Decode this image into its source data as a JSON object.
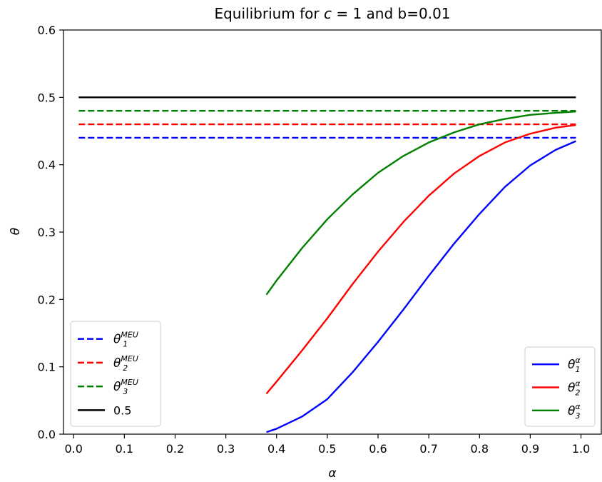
{
  "chart_data": {
    "type": "line",
    "title": "Equilibrium for c = 1 and b=0.01",
    "title_parts": [
      "Equilibrium for ",
      "c",
      " = 1 and b=0.01"
    ],
    "xlabel": "α",
    "ylabel": "θ",
    "xlim": [
      -0.02,
      1.04
    ],
    "ylim": [
      0.0,
      0.6
    ],
    "xticks": [
      0.0,
      0.1,
      0.2,
      0.3,
      0.4,
      0.5,
      0.6,
      0.7,
      0.8,
      0.9,
      1.0
    ],
    "xtick_labels": [
      "0.0",
      "0.1",
      "0.2",
      "0.3",
      "0.4",
      "0.5",
      "0.6",
      "0.7",
      "0.8",
      "0.9",
      "1.0"
    ],
    "yticks": [
      0.0,
      0.1,
      0.2,
      0.3,
      0.4,
      0.5,
      0.6
    ],
    "ytick_labels": [
      "0.0",
      "0.1",
      "0.2",
      "0.3",
      "0.4",
      "0.5",
      "0.6"
    ],
    "grid": false,
    "series": [
      {
        "id": "meu1",
        "name": "θ1^MEU",
        "base": "θ",
        "sub": "1",
        "sup": "MEU",
        "color": "#0000ff",
        "dash": true,
        "x": [
          0.01,
          0.99
        ],
        "y": [
          0.44,
          0.44
        ]
      },
      {
        "id": "meu2",
        "name": "θ2^MEU",
        "base": "θ",
        "sub": "2",
        "sup": "MEU",
        "color": "#ff0000",
        "dash": true,
        "x": [
          0.01,
          0.99
        ],
        "y": [
          0.46,
          0.46
        ]
      },
      {
        "id": "meu3",
        "name": "θ3^MEU",
        "base": "θ",
        "sub": "3",
        "sup": "MEU",
        "color": "#008000",
        "dash": true,
        "x": [
          0.01,
          0.99
        ],
        "y": [
          0.48,
          0.48
        ]
      },
      {
        "id": "half",
        "name": "0.5",
        "base": "0.5",
        "sub": "",
        "sup": "",
        "color": "#000000",
        "dash": false,
        "x": [
          0.01,
          0.99
        ],
        "y": [
          0.5,
          0.5
        ]
      },
      {
        "id": "a1",
        "name": "θ1^α",
        "base": "θ",
        "sub": "1",
        "sup": "α",
        "color": "#0000ff",
        "dash": false,
        "x": [
          0.38,
          0.4,
          0.45,
          0.5,
          0.55,
          0.6,
          0.65,
          0.7,
          0.75,
          0.8,
          0.85,
          0.9,
          0.95,
          0.99
        ],
        "y": [
          0.003,
          0.008,
          0.026,
          0.052,
          0.092,
          0.137,
          0.185,
          0.235,
          0.283,
          0.327,
          0.367,
          0.399,
          0.422,
          0.435
        ]
      },
      {
        "id": "a2",
        "name": "θ2^α",
        "base": "θ",
        "sub": "2",
        "sup": "α",
        "color": "#ff0000",
        "dash": false,
        "x": [
          0.38,
          0.4,
          0.45,
          0.5,
          0.55,
          0.6,
          0.65,
          0.7,
          0.75,
          0.8,
          0.85,
          0.9,
          0.95,
          0.99
        ],
        "y": [
          0.06,
          0.078,
          0.124,
          0.172,
          0.223,
          0.271,
          0.315,
          0.354,
          0.387,
          0.413,
          0.433,
          0.446,
          0.455,
          0.459
        ]
      },
      {
        "id": "a3",
        "name": "θ3^α",
        "base": "θ",
        "sub": "3",
        "sup": "α",
        "color": "#008000",
        "dash": false,
        "x": [
          0.38,
          0.4,
          0.45,
          0.5,
          0.55,
          0.6,
          0.65,
          0.7,
          0.75,
          0.8,
          0.85,
          0.9,
          0.95,
          0.99
        ],
        "y": [
          0.207,
          0.228,
          0.276,
          0.319,
          0.356,
          0.388,
          0.413,
          0.433,
          0.448,
          0.46,
          0.468,
          0.474,
          0.477,
          0.479
        ]
      }
    ],
    "legends": [
      {
        "id": "legend-left",
        "position": "lower-left",
        "items": [
          "meu1",
          "meu2",
          "meu3",
          "half"
        ]
      },
      {
        "id": "legend-right",
        "position": "lower-right",
        "items": [
          "a1",
          "a2",
          "a3"
        ]
      }
    ]
  }
}
